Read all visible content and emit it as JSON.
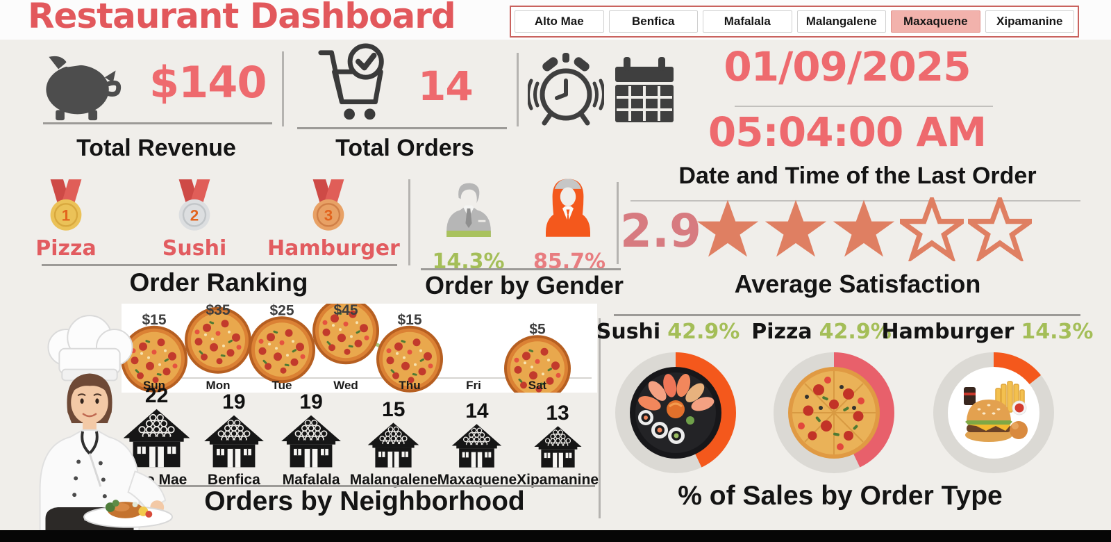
{
  "title": "Restaurant Dashboard",
  "colors": {
    "accent_red": "#E2585C",
    "value_red": "#EE6A6E",
    "icon_gray": "#4A4A4A",
    "green": "#A4BE58",
    "female_orange": "#F4581C",
    "gender_pink": "#E87D80",
    "star_coral": "#DF7F62",
    "score_pink": "#D77B80",
    "line_green": "#A9C47B",
    "slicer_selected_bg": "#F2B2AC"
  },
  "slicer": {
    "items": [
      {
        "label": "Alto Mae",
        "selected": false
      },
      {
        "label": "Benfica",
        "selected": false
      },
      {
        "label": "Mafalala",
        "selected": false
      },
      {
        "label": "Malangalene",
        "selected": false
      },
      {
        "label": "Maxaquene",
        "selected": true
      },
      {
        "label": "Xipamanine",
        "selected": false
      }
    ]
  },
  "kpis": {
    "revenue": {
      "icon": "piggy-bank-icon",
      "value": "$140",
      "label": "Total Revenue"
    },
    "orders": {
      "icon": "cart-check-icon",
      "value": "14",
      "label": "Total Orders"
    },
    "last_order": {
      "icons": [
        "alarm-clock-icon",
        "calendar-icon"
      ],
      "date": "01/09/2025",
      "time": "05:04:00 AM",
      "label": "Date and Time of the Last Order"
    }
  },
  "chart_data": [
    {
      "id": "revenue_by_day",
      "type": "line",
      "x": [
        "Sun",
        "Mon",
        "Tue",
        "Wed",
        "Thu",
        "Fri",
        "Sat"
      ],
      "values": [
        15,
        35,
        25,
        45,
        15,
        0,
        5
      ],
      "point_labels": [
        "$15",
        "$35",
        "$25",
        "$45",
        "$15",
        "",
        "$5"
      ],
      "marker": "pizza-icon",
      "line_color": "#A9C47B",
      "ylim": [
        0,
        50
      ],
      "grid": false
    },
    {
      "id": "orders_by_neighborhood",
      "type": "bar",
      "icon": "house-icon",
      "title": "Orders by Neighborhood",
      "categories": [
        "Alto Mae",
        "Benfica",
        "Mafalala",
        "Malangalene",
        "Maxaquene",
        "Xipamanine"
      ],
      "values": [
        22,
        19,
        19,
        15,
        14,
        13
      ]
    },
    {
      "id": "sales_by_order_type",
      "type": "pie",
      "title": "% of Sales by Order Type",
      "items": [
        {
          "name": "Sushi",
          "pct": 42.9,
          "pct_label": "42.9%",
          "arc_color": "#F4581C",
          "center": "sushi-image"
        },
        {
          "name": "Pizza",
          "pct": 42.9,
          "pct_label": "42.9%",
          "arc_color": "#E8606B",
          "center": "pizza-image"
        },
        {
          "name": "Hamburger",
          "pct": 14.3,
          "pct_label": "14.3%",
          "arc_color": "#F4581C",
          "center": "burger-fries-image"
        }
      ]
    },
    {
      "id": "order_by_gender",
      "type": "pictogram",
      "title": "Order by Gender",
      "categories": [
        "Male",
        "Female"
      ],
      "values": [
        14.3,
        85.7
      ],
      "labels": [
        "14.3%",
        "85.7%"
      ]
    },
    {
      "id": "average_satisfaction",
      "type": "rating",
      "title": "Average Satisfaction",
      "value": 2.9,
      "max": 5,
      "stars_filled": 3
    },
    {
      "id": "order_ranking",
      "type": "table",
      "title": "Order Ranking",
      "categories": [
        "Pizza",
        "Sushi",
        "Hamburger"
      ],
      "ranks": [
        1,
        2,
        3
      ],
      "medals": [
        "gold",
        "silver",
        "bronze"
      ]
    }
  ]
}
